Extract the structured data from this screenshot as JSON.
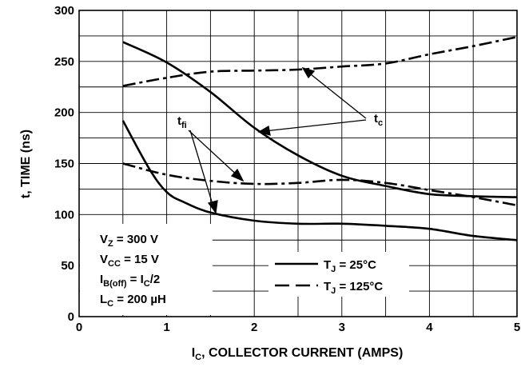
{
  "chart_data": {
    "type": "line",
    "xlabel": {
      "main": "I",
      "sub": "C",
      "rest": ", COLLECTOR CURRENT (AMPS)"
    },
    "ylabel": "t, TIME (ns)",
    "xlim": [
      0,
      5
    ],
    "ylim": [
      0,
      300
    ],
    "x_ticks": [
      "0",
      "1",
      "2",
      "3",
      "4",
      "5"
    ],
    "y_ticks": [
      "0",
      "50",
      "100",
      "150",
      "200",
      "250",
      "300"
    ],
    "grid": true,
    "series": [
      {
        "name": "tc @ TJ = 25°C",
        "style": "solid",
        "x": [
          0.5,
          1.0,
          1.5,
          2.0,
          2.5,
          3.0,
          3.5,
          4.0,
          4.5,
          5.0
        ],
        "y": [
          269,
          249,
          220,
          185,
          158,
          138,
          128,
          120,
          118,
          117
        ]
      },
      {
        "name": "tfi @ TJ = 25°C",
        "style": "solid",
        "x": [
          0.5,
          0.8,
          1.0,
          1.2,
          1.5,
          2.0,
          2.5,
          3.0,
          3.5,
          4.0,
          4.5,
          5.0
        ],
        "y": [
          192,
          145,
          122,
          112,
          102,
          94,
          91,
          91,
          89,
          86,
          79,
          75
        ]
      },
      {
        "name": "tc @ TJ = 125°C",
        "style": "dashdot",
        "x": [
          0.5,
          1.0,
          1.5,
          2.0,
          2.5,
          3.0,
          3.5,
          4.0,
          4.5,
          5.0
        ],
        "y": [
          226,
          234,
          240,
          241,
          242,
          245,
          248,
          257,
          265,
          274
        ]
      },
      {
        "name": "tfi @ TJ = 125°C",
        "style": "dashdot",
        "x": [
          0.5,
          1.0,
          1.5,
          2.0,
          2.5,
          3.0,
          3.5,
          4.0,
          4.5,
          5.0
        ],
        "y": [
          150,
          139,
          133,
          130,
          131,
          134,
          131,
          124,
          117,
          109
        ]
      }
    ],
    "annotations": {
      "tfi": {
        "main": "t",
        "sub": "fi"
      },
      "tc": {
        "main": "t",
        "sub": "c"
      }
    },
    "conditions": [
      {
        "main": "V",
        "sub": "Z",
        "rest": " = 300 V"
      },
      {
        "main": "V",
        "sub": "CC",
        "rest": " = 15 V"
      },
      {
        "main": "I",
        "sub": "B(off)",
        "rest": " = I",
        "sub2": "C",
        "rest2": "/2"
      },
      {
        "main": "L",
        "sub": "C",
        "rest": " = 200 µH"
      }
    ],
    "legend": [
      {
        "main": "T",
        "sub": "J",
        "rest": " = 25°C",
        "style": "solid"
      },
      {
        "main": "T",
        "sub": "J",
        "rest": " = 125°C",
        "style": "dashed"
      }
    ]
  }
}
